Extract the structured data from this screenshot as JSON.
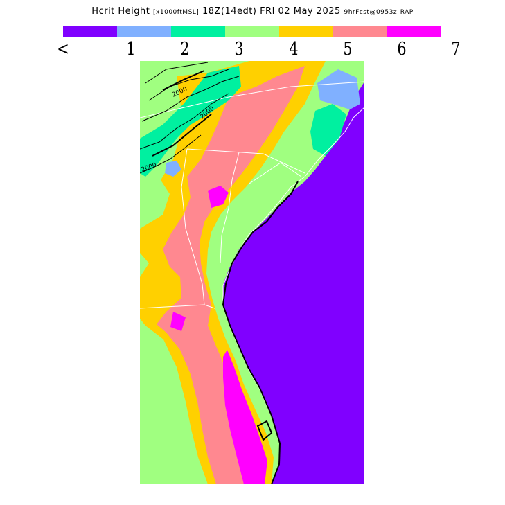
{
  "title": {
    "field": "Hcrit Height",
    "units": "[x1000ftMSL]",
    "valid": "18Z(14edt) FRI 02 May 2025",
    "forecast": "9hrFcst@0953z",
    "model": "RAP"
  },
  "legend": {
    "colors": [
      "#8000ff",
      "#80b0ff",
      "#00f0a0",
      "#a0ff80",
      "#ffd000",
      "#ff8890",
      "#ff00ff"
    ],
    "labels": [
      "<",
      "1",
      "2",
      "3",
      "4",
      "5",
      "6",
      "7"
    ]
  },
  "map": {
    "region": "Southeastern United States",
    "contour_labels": [
      "2000",
      "2000",
      "2000"
    ],
    "colors": {
      "ocean": "#8000ff",
      "background": "#ffffff",
      "state_lines": "#ffffff",
      "contours": "#000000"
    }
  }
}
